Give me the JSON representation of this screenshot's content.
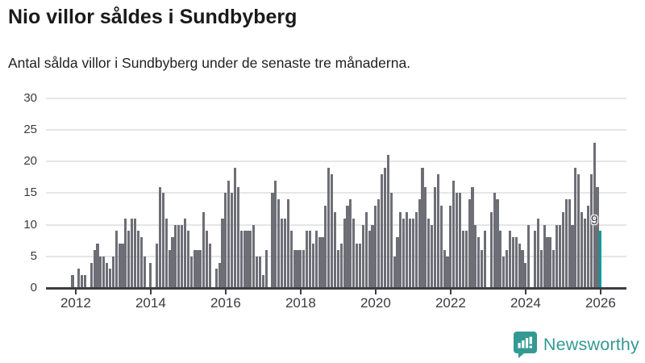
{
  "header": {
    "title": "Nio villor såldes i Sundbyberg",
    "subtitle": "Antal sålda villor i Sundbyberg under de senaste tre månaderna."
  },
  "annotation": {
    "label": "9"
  },
  "logo": {
    "wordmark": "Newsworthy",
    "icon": "bar-chart-speech-bubble-icon",
    "color": "#339a93"
  },
  "colors": {
    "bar": "#6e6e77",
    "highlight": "#00a0a0",
    "grid": "#e6e6e9",
    "axis": "#3d3d44",
    "label": "#3b3b3f"
  },
  "chart_data": {
    "type": "bar",
    "title": "Nio villor såldes i Sundbyberg",
    "subtitle": "Antal sålda villor i Sundbyberg under de senaste tre månaderna.",
    "frequency": "monthly",
    "x_start": "2011-12",
    "x_end": "2026-01",
    "ylim": [
      0,
      30
    ],
    "yticks": [
      0,
      5,
      10,
      15,
      20,
      25,
      30
    ],
    "xticks": [
      {
        "label": "2012",
        "month_index": 1
      },
      {
        "label": "2014",
        "month_index": 25
      },
      {
        "label": "2016",
        "month_index": 49
      },
      {
        "label": "2018",
        "month_index": 73
      },
      {
        "label": "2020",
        "month_index": 97
      },
      {
        "label": "2022",
        "month_index": 121
      },
      {
        "label": "2024",
        "month_index": 145
      },
      {
        "label": "2026",
        "month_index": 169
      }
    ],
    "grid": true,
    "legend": false,
    "bar_color": "#6e6e77",
    "highlight": {
      "index": 169,
      "value": 9,
      "label": "9",
      "color": "#00a0a0"
    },
    "values": [
      2,
      0,
      3,
      2,
      2,
      0,
      4,
      6,
      7,
      5,
      5,
      4,
      3,
      5,
      9,
      7,
      7,
      11,
      9,
      11,
      11,
      9,
      8,
      5,
      0,
      4,
      0,
      7,
      16,
      15,
      11,
      6,
      8,
      10,
      10,
      10,
      11,
      9,
      5,
      6,
      6,
      6,
      12,
      9,
      7,
      0,
      3,
      4,
      11,
      15,
      17,
      15,
      19,
      16,
      9,
      9,
      9,
      9,
      10,
      5,
      5,
      2,
      6,
      0,
      15,
      17,
      14,
      11,
      11,
      14,
      9,
      6,
      6,
      6,
      6,
      9,
      9,
      7,
      9,
      8,
      8,
      13,
      19,
      18,
      12,
      6,
      7,
      11,
      13,
      14,
      11,
      7,
      7,
      10,
      12,
      9,
      10,
      13,
      14,
      18,
      19,
      21,
      15,
      5,
      8,
      12,
      11,
      12,
      11,
      11,
      12,
      14,
      19,
      16,
      11,
      10,
      16,
      18,
      13,
      6,
      5,
      13,
      17,
      15,
      15,
      9,
      9,
      14,
      16,
      10,
      8,
      6,
      9,
      0,
      12,
      15,
      14,
      9,
      5,
      6,
      9,
      8,
      8,
      7,
      6,
      4,
      10,
      0,
      9,
      11,
      6,
      10,
      8,
      8,
      6,
      10,
      10,
      12,
      14,
      14,
      10,
      19,
      18,
      12,
      11,
      13,
      18,
      23,
      16,
      9
    ]
  }
}
